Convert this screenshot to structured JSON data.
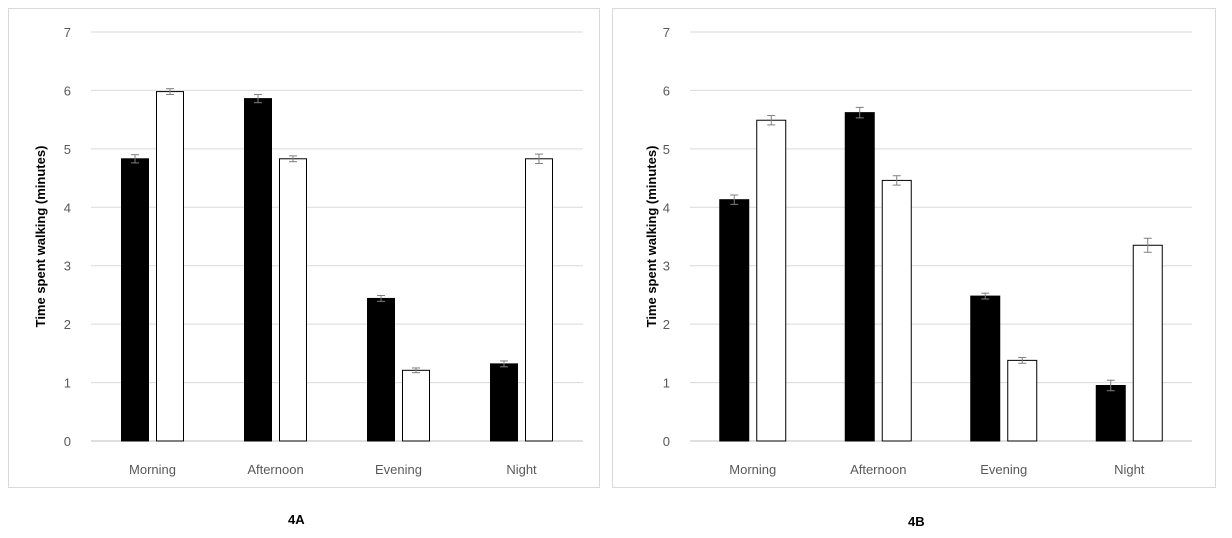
{
  "chart_data": [
    {
      "type": "bar",
      "categories": [
        "Morning",
        "Afternoon",
        "Evening",
        "Night"
      ],
      "series": [
        {
          "color": "#000000",
          "values": [
            4.83,
            5.86,
            2.44,
            1.32
          ],
          "errors": [
            0.07,
            0.07,
            0.05,
            0.05
          ]
        },
        {
          "color": "#ffffff",
          "values": [
            5.98,
            4.83,
            1.21,
            4.83
          ],
          "errors": [
            0.05,
            0.05,
            0.04,
            0.08
          ]
        }
      ],
      "ylabel": "Time spent walking (minutes)",
      "ylim": [
        0,
        7
      ],
      "yticks": [
        "0",
        "1",
        "2",
        "3",
        "4",
        "5",
        "6",
        "7"
      ],
      "grid": true,
      "panel_label": "4A"
    },
    {
      "type": "bar",
      "categories": [
        "Morning",
        "Afternoon",
        "Evening",
        "Night"
      ],
      "series": [
        {
          "color": "#000000",
          "values": [
            4.13,
            5.62,
            2.48,
            0.95
          ],
          "errors": [
            0.08,
            0.09,
            0.05,
            0.09
          ]
        },
        {
          "color": "#ffffff",
          "values": [
            5.49,
            4.46,
            1.38,
            3.35
          ],
          "errors": [
            0.08,
            0.08,
            0.05,
            0.12
          ]
        }
      ],
      "ylabel": "Time spent walking (minutes)",
      "ylim": [
        0,
        7
      ],
      "yticks": [
        "0",
        "1",
        "2",
        "3",
        "4",
        "5",
        "6",
        "7"
      ],
      "grid": true,
      "panel_label": "4B"
    }
  ]
}
